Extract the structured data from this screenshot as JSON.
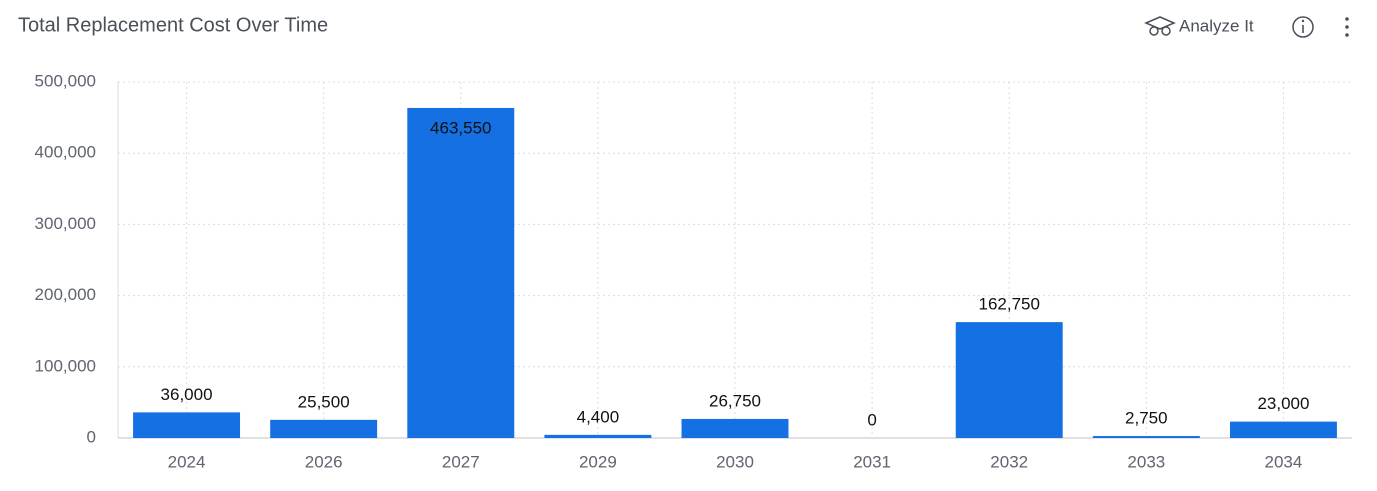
{
  "toolbar": {
    "analyze": "Analyze It"
  },
  "chart_data": {
    "type": "bar",
    "title": "Total Replacement Cost Over Time",
    "categories": [
      "2024",
      "2026",
      "2027",
      "2029",
      "2030",
      "2031",
      "2032",
      "2033",
      "2034"
    ],
    "values": [
      36000,
      25500,
      463550,
      4400,
      26750,
      0,
      162750,
      2750,
      23000
    ],
    "value_labels": [
      "36,000",
      "25,500",
      "463,550",
      "4,400",
      "26,750",
      "0",
      "162,750",
      "2,750",
      "23,000"
    ],
    "color": "#1570e3",
    "ylim": [
      0,
      500000
    ],
    "yticks": [
      0,
      {
        "value": 100000,
        "label": "100,000"
      },
      {
        "value": 200000,
        "label": "200,000"
      },
      {
        "value": 300000,
        "label": "300,000"
      },
      {
        "value": 400000,
        "label": "400,000"
      },
      {
        "value": 500000,
        "label": "500,000"
      }
    ],
    "grid": true
  }
}
